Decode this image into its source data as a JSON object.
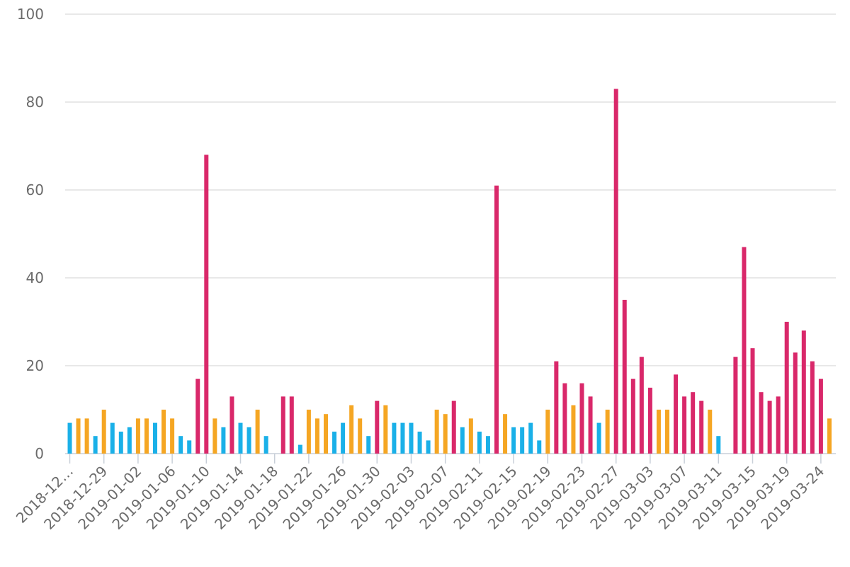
{
  "chart_data": {
    "type": "bar",
    "title": "",
    "xlabel": "",
    "ylabel": "",
    "ylim": [
      0,
      100
    ],
    "yticks": [
      0,
      20,
      40,
      60,
      80,
      100
    ],
    "grid": true,
    "colors": {
      "low": "#1ab0e8",
      "mid": "#f5a623",
      "high": "#d9286a"
    },
    "tick_labels": [
      "2018-12…",
      "2018-12-29",
      "2019-01-02",
      "2019-01-06",
      "2019-01-10",
      "2019-01-14",
      "2019-01-18",
      "2019-01-22",
      "2019-01-26",
      "2019-01-30",
      "2019-02-03",
      "2019-02-07",
      "2019-02-11",
      "2019-02-15",
      "2019-02-19",
      "2019-02-23",
      "2019-02-27",
      "2019-03-03",
      "2019-03-07",
      "2019-03-11",
      "2019-03-15",
      "2019-03-19",
      "2019-03-24"
    ],
    "tick_indices": [
      0,
      4,
      8,
      12,
      16,
      20,
      24,
      28,
      32,
      36,
      40,
      44,
      48,
      52,
      56,
      60,
      64,
      68,
      72,
      76,
      80,
      84,
      88
    ],
    "values": [
      7,
      8,
      8,
      4,
      10,
      7,
      5,
      6,
      8,
      8,
      7,
      10,
      8,
      4,
      3,
      17,
      68,
      8,
      6,
      13,
      7,
      6,
      10,
      4,
      0,
      13,
      13,
      2,
      10,
      8,
      9,
      5,
      7,
      11,
      8,
      4,
      12,
      11,
      7,
      7,
      7,
      5,
      3,
      10,
      9,
      12,
      6,
      8,
      5,
      4,
      61,
      9,
      6,
      6,
      7,
      3,
      10,
      21,
      16,
      11,
      16,
      13,
      7,
      10,
      83,
      35,
      17,
      22,
      15,
      10,
      10,
      18,
      13,
      14,
      12,
      10,
      4,
      0,
      22,
      47,
      24,
      14,
      12,
      13,
      30,
      23,
      28,
      21,
      17,
      8
    ],
    "categories": [
      "low",
      "mid",
      "mid",
      "low",
      "mid",
      "low",
      "low",
      "low",
      "mid",
      "mid",
      "low",
      "mid",
      "mid",
      "low",
      "low",
      "high",
      "high",
      "mid",
      "low",
      "high",
      "low",
      "low",
      "mid",
      "low",
      "none",
      "high",
      "high",
      "low",
      "mid",
      "mid",
      "mid",
      "low",
      "low",
      "mid",
      "mid",
      "low",
      "high",
      "mid",
      "low",
      "low",
      "low",
      "low",
      "low",
      "mid",
      "mid",
      "high",
      "low",
      "mid",
      "low",
      "low",
      "high",
      "mid",
      "low",
      "low",
      "low",
      "low",
      "mid",
      "high",
      "high",
      "mid",
      "high",
      "high",
      "low",
      "mid",
      "high",
      "high",
      "high",
      "high",
      "high",
      "mid",
      "mid",
      "high",
      "high",
      "high",
      "high",
      "mid",
      "low",
      "none",
      "high",
      "high",
      "high",
      "high",
      "high",
      "high",
      "high",
      "high",
      "high",
      "high",
      "high",
      "mid"
    ]
  }
}
